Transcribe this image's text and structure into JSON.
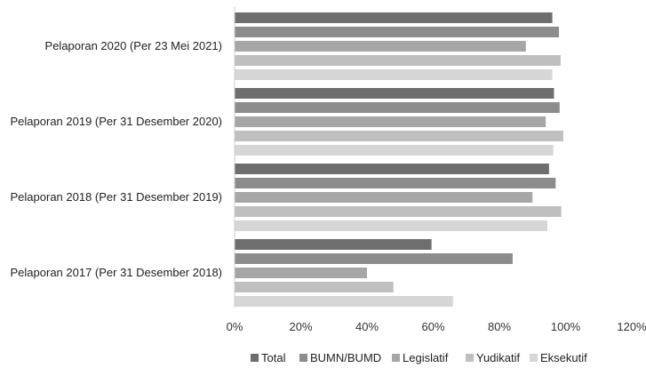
{
  "chart_data": {
    "type": "bar",
    "orientation": "horizontal",
    "categories": [
      "Pelaporan 2020 (Per 23 Mei 2021)",
      "Pelaporan 2019 (Per 31 Desember 2020)",
      "Pelaporan 2018 (Per 31 Desember 2019)",
      "Pelaporan 2017 (Per 31 Desember 2018)"
    ],
    "series": [
      {
        "name": "Total",
        "color": "#6e6e6e",
        "values": [
          96,
          96.5,
          95,
          59.5
        ]
      },
      {
        "name": "BUMN/BUMD",
        "color": "#8c8c8c",
        "values": [
          98,
          98.2,
          97,
          84
        ]
      },
      {
        "name": "Legislatif",
        "color": "#a6a6a6",
        "values": [
          88,
          94,
          90,
          40
        ]
      },
      {
        "name": "Yudikatif",
        "color": "#bfbfbf",
        "values": [
          98.5,
          99.3,
          98.7,
          48
        ]
      },
      {
        "name": "Eksekutif",
        "color": "#d6d6d6",
        "values": [
          96,
          96.3,
          94.5,
          66
        ]
      }
    ],
    "xlim": [
      0,
      120
    ],
    "xticks": [
      "0%",
      "20%",
      "40%",
      "60%",
      "80%",
      "100%",
      "120%"
    ],
    "grid": false,
    "legend_position": "bottom"
  }
}
